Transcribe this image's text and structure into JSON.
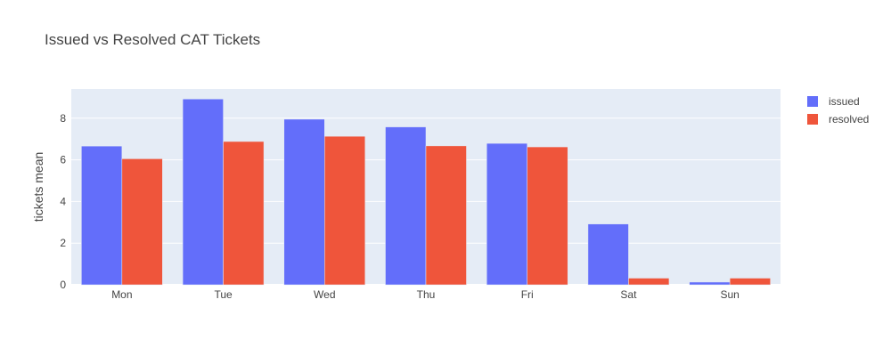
{
  "chart_data": {
    "type": "bar",
    "title": "Issued vs Resolved CAT Tickets",
    "xlabel": "",
    "ylabel": "tickets mean",
    "categories": [
      "Mon",
      "Tue",
      "Wed",
      "Thu",
      "Fri",
      "Sat",
      "Sun"
    ],
    "series": [
      {
        "name": "issued",
        "color": "#636efa",
        "values": [
          6.66,
          8.92,
          7.95,
          7.58,
          6.79,
          2.92,
          0.13
        ]
      },
      {
        "name": "resolved",
        "color": "#ef553b",
        "values": [
          6.05,
          6.88,
          7.13,
          6.67,
          6.62,
          0.32,
          0.32
        ]
      }
    ],
    "ylim": [
      0,
      9.4
    ],
    "yticks": [
      0,
      2,
      4,
      6,
      8
    ],
    "grid": true,
    "legend_position": "top-right",
    "plot_background": "#e5ecf6"
  }
}
